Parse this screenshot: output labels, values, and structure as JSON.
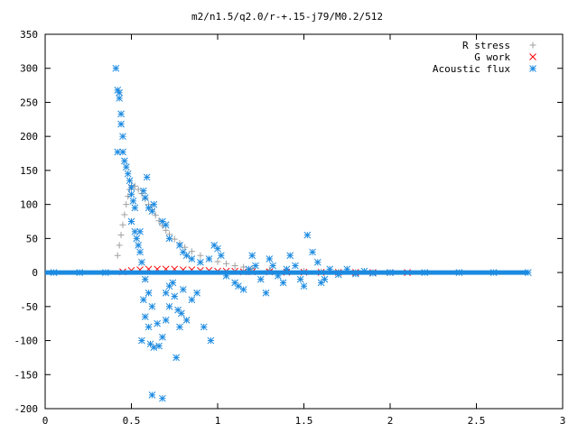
{
  "chart_data": {
    "type": "scatter",
    "title": "m2/n1.5/q2.0/r-+.15-j79/M0.2/512",
    "xlabel": "",
    "ylabel": "",
    "xlim": [
      0,
      3
    ],
    "ylim": [
      -200,
      350
    ],
    "x_ticks": [
      0,
      0.5,
      1,
      1.5,
      2,
      2.5,
      3
    ],
    "x_tick_labels": [
      "0",
      "0.5",
      "1",
      "1.5",
      "2",
      "2.5",
      "3"
    ],
    "y_ticks": [
      -200,
      -150,
      -100,
      -50,
      0,
      50,
      100,
      150,
      200,
      250,
      300,
      350
    ],
    "y_tick_labels": [
      "-200",
      "-150",
      "-100",
      "-50",
      "0",
      "50",
      "100",
      "150",
      "200",
      "250",
      "300",
      "350"
    ],
    "grid": false,
    "legend_position": "top-right",
    "series": [
      {
        "name": "R stress",
        "marker": "plus",
        "color": "#a0a0a0",
        "points": [
          [
            0.42,
            25
          ],
          [
            0.43,
            40
          ],
          [
            0.44,
            55
          ],
          [
            0.45,
            70
          ],
          [
            0.46,
            85
          ],
          [
            0.47,
            100
          ],
          [
            0.48,
            112
          ],
          [
            0.49,
            122
          ],
          [
            0.5,
            128
          ],
          [
            0.52,
            127
          ],
          [
            0.54,
            122
          ],
          [
            0.56,
            116
          ],
          [
            0.58,
            108
          ],
          [
            0.6,
            100
          ],
          [
            0.62,
            92
          ],
          [
            0.64,
            84
          ],
          [
            0.66,
            76
          ],
          [
            0.68,
            69
          ],
          [
            0.7,
            62
          ],
          [
            0.72,
            56
          ],
          [
            0.75,
            49
          ],
          [
            0.78,
            43
          ],
          [
            0.81,
            37
          ],
          [
            0.85,
            31
          ],
          [
            0.9,
            25
          ],
          [
            0.95,
            20
          ],
          [
            1.0,
            16
          ],
          [
            1.05,
            13
          ],
          [
            1.1,
            10
          ],
          [
            1.15,
            8
          ],
          [
            1.2,
            6
          ],
          [
            1.3,
            4
          ],
          [
            1.4,
            3
          ],
          [
            1.5,
            2
          ],
          [
            1.6,
            1
          ],
          [
            1.7,
            0.6
          ],
          [
            1.8,
            0.3
          ],
          [
            1.9,
            0.1
          ],
          [
            2.0,
            0
          ]
        ]
      },
      {
        "name": "G work",
        "marker": "cross",
        "color": "#ff0000",
        "points": [
          [
            0.45,
            1
          ],
          [
            0.5,
            3
          ],
          [
            0.55,
            4
          ],
          [
            0.6,
            5
          ],
          [
            0.65,
            5
          ],
          [
            0.7,
            5
          ],
          [
            0.75,
            5
          ],
          [
            0.8,
            4
          ],
          [
            0.85,
            4
          ],
          [
            0.9,
            3
          ],
          [
            0.95,
            3
          ],
          [
            1.0,
            2
          ],
          [
            1.05,
            2
          ],
          [
            1.1,
            2
          ],
          [
            1.15,
            1
          ],
          [
            1.2,
            1
          ],
          [
            1.3,
            1
          ],
          [
            1.4,
            0.5
          ],
          [
            1.5,
            0.5
          ],
          [
            1.6,
            0.3
          ],
          [
            1.7,
            0.2
          ],
          [
            1.8,
            0.1
          ],
          [
            1.9,
            0
          ],
          [
            2.0,
            0
          ],
          [
            2.1,
            0
          ]
        ]
      },
      {
        "name": "Acoustic flux",
        "marker": "star",
        "color": "#1c8ae0",
        "points": [
          [
            0.41,
            300
          ],
          [
            0.42,
            268
          ],
          [
            0.43,
            264
          ],
          [
            0.43,
            256
          ],
          [
            0.44,
            233
          ],
          [
            0.44,
            218
          ],
          [
            0.45,
            200
          ],
          [
            0.42,
            177
          ],
          [
            0.45,
            177
          ],
          [
            0.46,
            164
          ],
          [
            0.47,
            155
          ],
          [
            0.48,
            145
          ],
          [
            0.49,
            135
          ],
          [
            0.5,
            125
          ],
          [
            0.5,
            115
          ],
          [
            0.51,
            105
          ],
          [
            0.52,
            95
          ],
          [
            0.5,
            75
          ],
          [
            0.52,
            60
          ],
          [
            0.53,
            50
          ],
          [
            0.54,
            40
          ],
          [
            0.55,
            30
          ],
          [
            0.57,
            120
          ],
          [
            0.58,
            110
          ],
          [
            0.6,
            95
          ],
          [
            0.62,
            90
          ],
          [
            0.63,
            100
          ],
          [
            0.59,
            140
          ],
          [
            0.55,
            60
          ],
          [
            0.56,
            15
          ],
          [
            0.58,
            -10
          ],
          [
            0.6,
            -30
          ],
          [
            0.57,
            -40
          ],
          [
            0.62,
            -50
          ],
          [
            0.58,
            -65
          ],
          [
            0.6,
            -80
          ],
          [
            0.56,
            -100
          ],
          [
            0.61,
            -105
          ],
          [
            0.63,
            -110
          ],
          [
            0.66,
            -108
          ],
          [
            0.68,
            -95
          ],
          [
            0.65,
            -75
          ],
          [
            0.7,
            -70
          ],
          [
            0.72,
            -50
          ],
          [
            0.7,
            -30
          ],
          [
            0.75,
            -35
          ],
          [
            0.77,
            -55
          ],
          [
            0.79,
            -60
          ],
          [
            0.82,
            -70
          ],
          [
            0.78,
            -80
          ],
          [
            0.76,
            -125
          ],
          [
            0.62,
            -180
          ],
          [
            0.68,
            -185
          ],
          [
            0.72,
            -20
          ],
          [
            0.74,
            -15
          ],
          [
            0.8,
            -25
          ],
          [
            0.85,
            -40
          ],
          [
            0.88,
            -30
          ],
          [
            0.92,
            -80
          ],
          [
            0.96,
            -100
          ],
          [
            0.68,
            75
          ],
          [
            0.7,
            70
          ],
          [
            0.72,
            50
          ],
          [
            0.78,
            40
          ],
          [
            0.8,
            30
          ],
          [
            0.82,
            25
          ],
          [
            0.85,
            20
          ],
          [
            0.9,
            15
          ],
          [
            0.95,
            20
          ],
          [
            0.98,
            40
          ],
          [
            1.0,
            35
          ],
          [
            1.02,
            25
          ],
          [
            1.05,
            -5
          ],
          [
            1.1,
            -15
          ],
          [
            1.12,
            -20
          ],
          [
            1.15,
            -25
          ],
          [
            1.18,
            5
          ],
          [
            1.2,
            25
          ],
          [
            1.22,
            10
          ],
          [
            1.25,
            -10
          ],
          [
            1.28,
            -30
          ],
          [
            1.3,
            20
          ],
          [
            1.32,
            10
          ],
          [
            1.35,
            -5
          ],
          [
            1.38,
            -15
          ],
          [
            1.4,
            5
          ],
          [
            1.42,
            25
          ],
          [
            1.45,
            10
          ],
          [
            1.48,
            -10
          ],
          [
            1.5,
            -20
          ],
          [
            1.52,
            55
          ],
          [
            1.55,
            30
          ],
          [
            1.58,
            15
          ],
          [
            1.6,
            -15
          ],
          [
            1.62,
            -10
          ],
          [
            1.65,
            5
          ],
          [
            1.7,
            -3
          ],
          [
            1.75,
            5
          ],
          [
            1.8,
            -2
          ],
          [
            1.85,
            2
          ],
          [
            1.9,
            -1
          ],
          [
            2.0,
            0
          ],
          [
            2.2,
            0
          ],
          [
            2.4,
            0
          ],
          [
            2.6,
            0
          ],
          [
            2.8,
            0
          ],
          [
            0.05,
            0
          ],
          [
            0.2,
            0
          ],
          [
            0.35,
            0
          ]
        ]
      }
    ]
  }
}
